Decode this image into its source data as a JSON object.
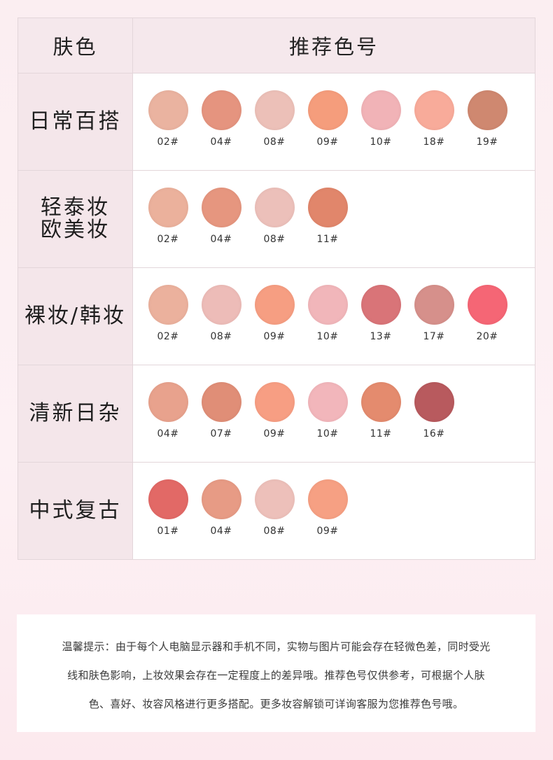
{
  "header": {
    "skin_label": "肤色",
    "recommend_label": "推荐色号"
  },
  "rows": [
    {
      "label": "日常百搭",
      "swatches": [
        {
          "code": "02#",
          "color": "#eab3a0"
        },
        {
          "code": "04#",
          "color": "#e5947f"
        },
        {
          "code": "08#",
          "color": "#ecc0b8"
        },
        {
          "code": "09#",
          "color": "#f59d7c"
        },
        {
          "code": "10#",
          "color": "#f1b3b7"
        },
        {
          "code": "18#",
          "color": "#f8ab9a"
        },
        {
          "code": "19#",
          "color": "#cf8870"
        }
      ]
    },
    {
      "label": "轻泰妆\n欧美妆",
      "swatches": [
        {
          "code": "02#",
          "color": "#ebb19c"
        },
        {
          "code": "04#",
          "color": "#e6967f"
        },
        {
          "code": "08#",
          "color": "#ecc0ba"
        },
        {
          "code": "11#",
          "color": "#e1866b"
        }
      ]
    },
    {
      "label": "裸妆/韩妆",
      "swatches": [
        {
          "code": "02#",
          "color": "#ebb19d"
        },
        {
          "code": "08#",
          "color": "#edbcb8"
        },
        {
          "code": "09#",
          "color": "#f69e82"
        },
        {
          "code": "10#",
          "color": "#f1b6ba"
        },
        {
          "code": "13#",
          "color": "#d97478"
        },
        {
          "code": "17#",
          "color": "#d6908b"
        },
        {
          "code": "20#",
          "color": "#f56675"
        }
      ]
    },
    {
      "label": "清新日杂",
      "swatches": [
        {
          "code": "04#",
          "color": "#e8a28d"
        },
        {
          "code": "07#",
          "color": "#e08e77"
        },
        {
          "code": "09#",
          "color": "#f79e83"
        },
        {
          "code": "10#",
          "color": "#f2b6bb"
        },
        {
          "code": "11#",
          "color": "#e48b6e"
        },
        {
          "code": "16#",
          "color": "#b85a5e"
        }
      ]
    },
    {
      "label": "中式复古",
      "swatches": [
        {
          "code": "01#",
          "color": "#e26966"
        },
        {
          "code": "04#",
          "color": "#e79b85"
        },
        {
          "code": "08#",
          "color": "#edc0ba"
        },
        {
          "code": "09#",
          "color": "#f6a083"
        }
      ]
    }
  ],
  "notice": {
    "lines": [
      "温馨提示：由于每个人电脑显示器和手机不同，实物与图片可能会存在轻微色差，同时受光",
      "线和肤色影响，上妆效果会存在一定程度上的差异哦。推荐色号仅供参考，可根据个人肤",
      "色、喜好、妆容风格进行更多搭配。更多妆容解锁可详询客服为您推荐色号哦。"
    ]
  }
}
